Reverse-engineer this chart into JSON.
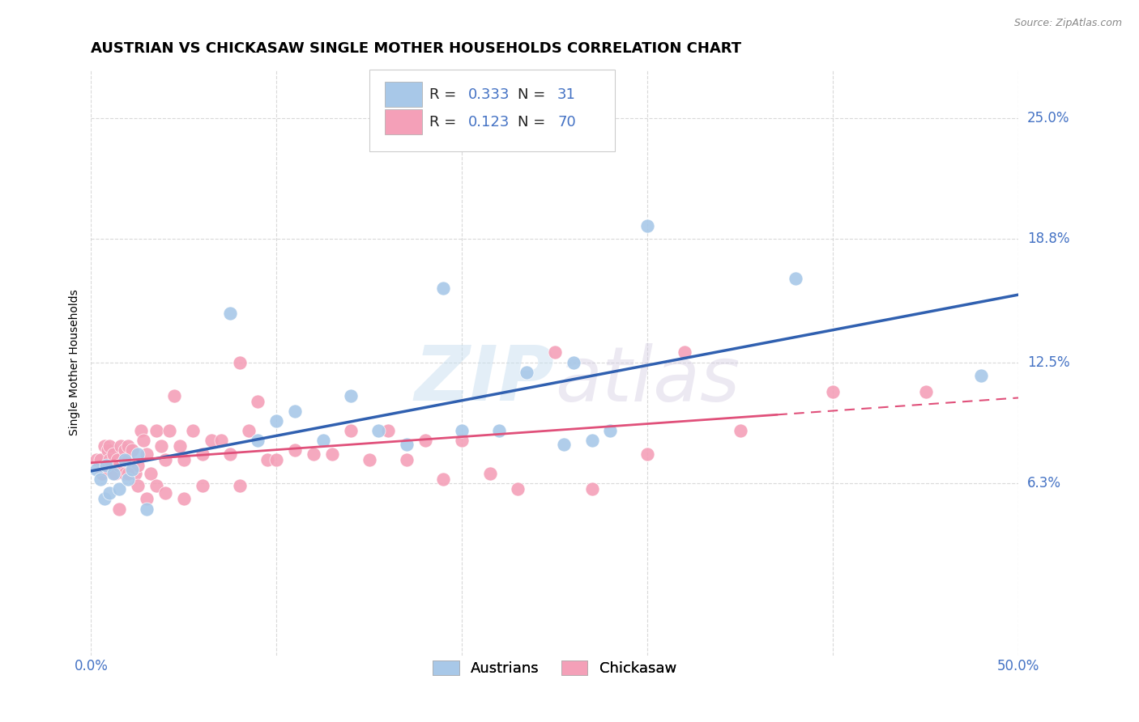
{
  "title": "AUSTRIAN VS CHICKASAW SINGLE MOTHER HOUSEHOLDS CORRELATION CHART",
  "source": "Source: ZipAtlas.com",
  "ylabel": "Single Mother Households",
  "xlim": [
    0.0,
    0.5
  ],
  "ylim": [
    -0.025,
    0.275
  ],
  "yticks": [
    0.063,
    0.125,
    0.188,
    0.25
  ],
  "ytick_labels": [
    "6.3%",
    "12.5%",
    "18.8%",
    "25.0%"
  ],
  "xticks": [
    0.0,
    0.1,
    0.2,
    0.3,
    0.4,
    0.5
  ],
  "xtick_labels": [
    "0.0%",
    "",
    "",
    "",
    "",
    "50.0%"
  ],
  "watermark": "ZIPatlas",
  "legend_r_austrians": "0.333",
  "legend_n_austrians": "31",
  "legend_r_chickasaw": "0.123",
  "legend_n_chickasaw": "70",
  "color_austrians": "#a8c8e8",
  "color_chickasaw": "#f4a0b8",
  "color_trend_austrians": "#3060b0",
  "color_trend_chickasaw": "#e0507a",
  "austrians_x": [
    0.003,
    0.005,
    0.007,
    0.008,
    0.01,
    0.012,
    0.015,
    0.018,
    0.02,
    0.022,
    0.025,
    0.03,
    0.075,
    0.09,
    0.1,
    0.11,
    0.125,
    0.14,
    0.155,
    0.17,
    0.19,
    0.22,
    0.255,
    0.26,
    0.28,
    0.3,
    0.38,
    0.2,
    0.235,
    0.27,
    0.48
  ],
  "austrians_y": [
    0.07,
    0.065,
    0.055,
    0.072,
    0.058,
    0.068,
    0.06,
    0.075,
    0.065,
    0.07,
    0.078,
    0.05,
    0.15,
    0.085,
    0.095,
    0.1,
    0.085,
    0.108,
    0.09,
    0.083,
    0.163,
    0.09,
    0.083,
    0.125,
    0.09,
    0.195,
    0.168,
    0.09,
    0.12,
    0.085,
    0.118
  ],
  "chickasaw_x": [
    0.003,
    0.005,
    0.006,
    0.007,
    0.008,
    0.009,
    0.01,
    0.01,
    0.012,
    0.013,
    0.014,
    0.015,
    0.016,
    0.018,
    0.018,
    0.02,
    0.02,
    0.022,
    0.022,
    0.024,
    0.025,
    0.027,
    0.028,
    0.03,
    0.032,
    0.035,
    0.038,
    0.04,
    0.042,
    0.045,
    0.048,
    0.05,
    0.055,
    0.06,
    0.065,
    0.07,
    0.075,
    0.08,
    0.085,
    0.09,
    0.095,
    0.1,
    0.11,
    0.12,
    0.13,
    0.14,
    0.15,
    0.16,
    0.17,
    0.18,
    0.19,
    0.2,
    0.215,
    0.23,
    0.25,
    0.27,
    0.3,
    0.32,
    0.35,
    0.4,
    0.015,
    0.02,
    0.025,
    0.03,
    0.035,
    0.04,
    0.05,
    0.06,
    0.08,
    0.45
  ],
  "chickasaw_y": [
    0.075,
    0.075,
    0.068,
    0.082,
    0.07,
    0.08,
    0.075,
    0.082,
    0.078,
    0.068,
    0.075,
    0.072,
    0.082,
    0.068,
    0.08,
    0.075,
    0.082,
    0.072,
    0.08,
    0.068,
    0.072,
    0.09,
    0.085,
    0.078,
    0.068,
    0.09,
    0.082,
    0.075,
    0.09,
    0.108,
    0.082,
    0.075,
    0.09,
    0.078,
    0.085,
    0.085,
    0.078,
    0.125,
    0.09,
    0.105,
    0.075,
    0.075,
    0.08,
    0.078,
    0.078,
    0.09,
    0.075,
    0.09,
    0.075,
    0.085,
    0.065,
    0.085,
    0.068,
    0.06,
    0.13,
    0.06,
    0.078,
    0.13,
    0.09,
    0.11,
    0.05,
    0.068,
    0.062,
    0.055,
    0.062,
    0.058,
    0.055,
    0.062,
    0.062,
    0.11
  ],
  "background_color": "#ffffff",
  "grid_color": "#cccccc"
}
